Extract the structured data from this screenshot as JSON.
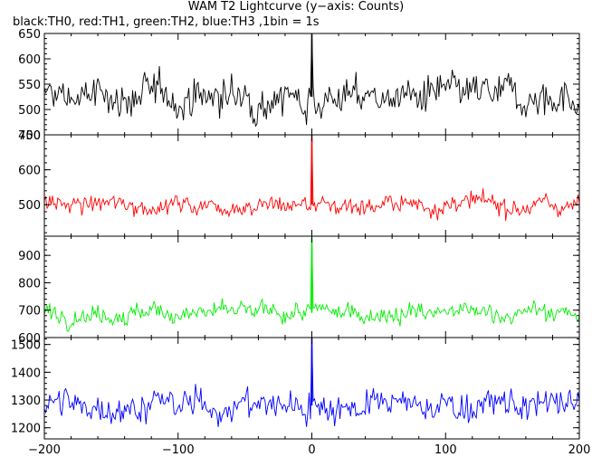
{
  "title": "WAM T2 Lightcurve (y−axis: Counts)",
  "subtitle": "black:TH0, red:TH1, green:TH2, blue:TH3 ,1bin = 1s",
  "chart_data": {
    "type": "line",
    "xlim": [
      -200,
      200
    ],
    "x_ticks": [
      -200,
      -100,
      0,
      100,
      200
    ],
    "grid": false,
    "panels": [
      {
        "name": "TH0",
        "color": "#000000",
        "ylim": [
          450,
          650
        ],
        "y_ticks": [
          450,
          500,
          550,
          600,
          650
        ],
        "baseline": 525,
        "noise": 30,
        "peak": 650,
        "peak_x": 0
      },
      {
        "name": "TH1",
        "color": "#ff0000",
        "ylim": [
          410,
          700
        ],
        "y_ticks": [
          500,
          600,
          700
        ],
        "baseline": 500,
        "noise": 22,
        "peak": 700,
        "peak_x": 0
      },
      {
        "name": "TH2",
        "color": "#00ee00",
        "ylim": [
          600,
          970
        ],
        "y_ticks": [
          600,
          700,
          800,
          900
        ],
        "baseline": 690,
        "noise": 28,
        "peak": 965,
        "peak_x": 0
      },
      {
        "name": "TH3",
        "color": "#0000ff",
        "ylim": [
          1160,
          1525
        ],
        "y_ticks": [
          1200,
          1300,
          1400,
          1500
        ],
        "baseline": 1280,
        "noise": 45,
        "peak": 1525,
        "peak_x": 0
      }
    ]
  }
}
